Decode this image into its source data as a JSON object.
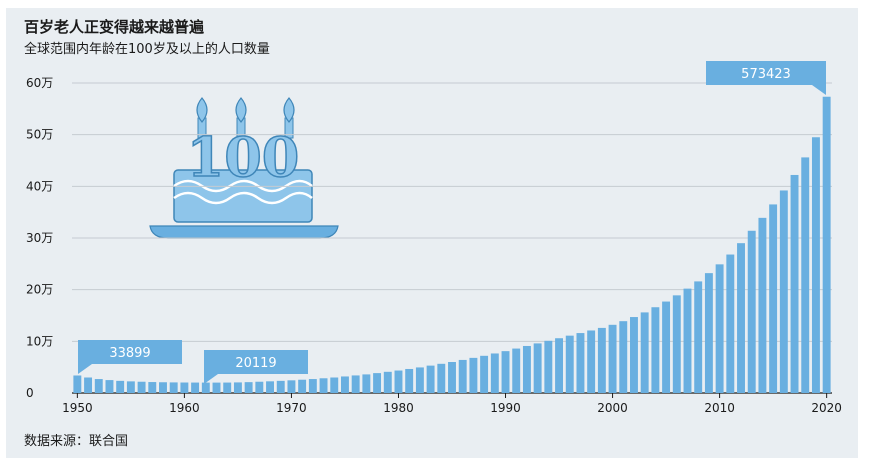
{
  "header": {
    "title": "百岁老人正变得越来越普遍",
    "subtitle": "全球范围内年龄在100岁及以上的人口数量"
  },
  "footer": {
    "source": "数据来源：联合国"
  },
  "decoration": {
    "number": "100"
  },
  "colors": {
    "bar": "#69afe0",
    "callout": "#69afe0",
    "background": "#e9eef2",
    "grid": "#c5cbd1"
  },
  "chart_data": {
    "type": "bar",
    "title": "百岁老人正变得越来越普遍",
    "subtitle": "全球范围内年龄在100岁及以上的人口数量",
    "xlabel": "",
    "ylabel": "",
    "ylim": [
      0,
      600000
    ],
    "grid": true,
    "y_ticks": [
      {
        "value": 0,
        "label": "0"
      },
      {
        "value": 100000,
        "label": "10万"
      },
      {
        "value": 200000,
        "label": "20万"
      },
      {
        "value": 300000,
        "label": "30万"
      },
      {
        "value": 400000,
        "label": "40万"
      },
      {
        "value": 500000,
        "label": "50万"
      },
      {
        "value": 600000,
        "label": "60万"
      }
    ],
    "x_ticks": [
      "1950",
      "1960",
      "1970",
      "1980",
      "1990",
      "2000",
      "2010",
      "2020"
    ],
    "x": [
      1950,
      1951,
      1952,
      1953,
      1954,
      1955,
      1956,
      1957,
      1958,
      1959,
      1960,
      1961,
      1962,
      1963,
      1964,
      1965,
      1966,
      1967,
      1968,
      1969,
      1970,
      1971,
      1972,
      1973,
      1974,
      1975,
      1976,
      1977,
      1978,
      1979,
      1980,
      1981,
      1982,
      1983,
      1984,
      1985,
      1986,
      1987,
      1988,
      1989,
      1990,
      1991,
      1992,
      1993,
      1994,
      1995,
      1996,
      1997,
      1998,
      1999,
      2000,
      2001,
      2002,
      2003,
      2004,
      2005,
      2006,
      2007,
      2008,
      2009,
      2010,
      2011,
      2012,
      2013,
      2014,
      2015,
      2016,
      2017,
      2018,
      2019,
      2020
    ],
    "values": [
      33899,
      30000,
      27000,
      25000,
      23500,
      22500,
      21800,
      21200,
      20800,
      20500,
      20300,
      20200,
      20150,
      20119,
      20200,
      20500,
      21000,
      21800,
      22600,
      23500,
      24500,
      25700,
      27000,
      28500,
      30000,
      32000,
      34000,
      36000,
      38500,
      41000,
      43500,
      46500,
      49500,
      53000,
      56500,
      60000,
      64000,
      68000,
      72000,
      76500,
      81000,
      86000,
      91000,
      96000,
      101000,
      106000,
      111000,
      116000,
      121000,
      126000,
      132000,
      139000,
      147000,
      156000,
      166000,
      177000,
      189000,
      202000,
      216000,
      232000,
      249000,
      268000,
      290000,
      314000,
      339000,
      365000,
      392000,
      422000,
      456000,
      495000,
      573423
    ],
    "annotations": [
      {
        "year": 1950,
        "label": "33899"
      },
      {
        "year": 1963,
        "label": "20119"
      },
      {
        "year": 2020,
        "label": "573423"
      }
    ]
  }
}
